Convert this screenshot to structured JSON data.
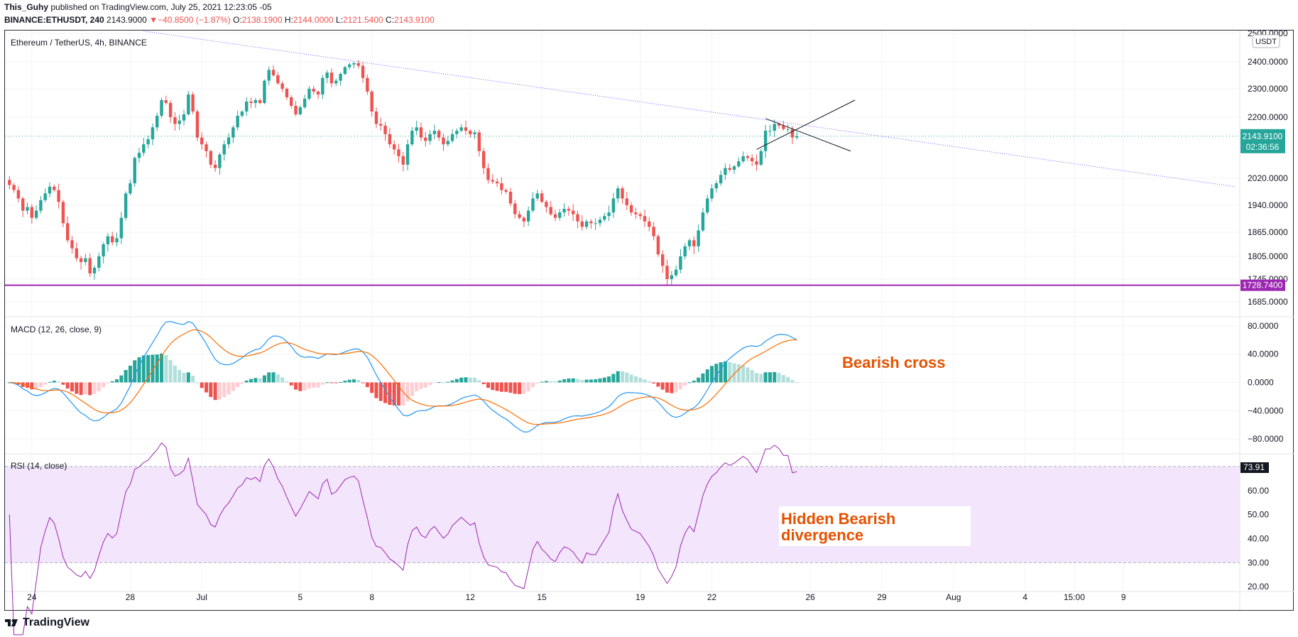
{
  "header": {
    "author": "This_Guhy",
    "published": "published on TradingView.com, July 25, 2021 12:23:05 -05",
    "symbol": "BINANCE:ETHUSDT, 240",
    "last": "2143.9000",
    "change": "−40.8500 (−1.87%)",
    "open_label": "O:",
    "open": "2138.1900",
    "high_label": "H:",
    "high": "2144.0000",
    "low_label": "L:",
    "low": "2121.5400",
    "close_label": "C:",
    "close": "2143.9100"
  },
  "colors": {
    "up": "#26a69a",
    "down": "#ef5350",
    "hist_up_light": "#b2dfdb",
    "hist_down_light": "#ffcdd2",
    "macd": "#2196f3",
    "signal": "#ff6d00",
    "rsi": "#9c27b0",
    "support": "#9c27b0",
    "annotation": "#e65100"
  },
  "footer": {
    "brand": "TradingView"
  },
  "chart_data": [
    {
      "type": "candlestick",
      "title": "Ethereum / TetherUS, 4h, BINANCE",
      "currency": "USDT",
      "y_ticks": [
        2500,
        2400,
        2300,
        2200,
        2020,
        1940,
        1865,
        1805,
        1745,
        1685
      ],
      "y_tick_labels": [
        "2500.0000",
        "2400.0000",
        "2300.0000",
        "2200.0000",
        "2020.0000",
        "1940.0000",
        "1865.0000",
        "1805.0000",
        "1745.0000",
        "1685.0000"
      ],
      "x_tick_labels": [
        "24",
        "28",
        "Jul",
        "5",
        "8",
        "12",
        "15",
        "19",
        "22",
        "26",
        "29",
        "Aug",
        "4",
        "15:00",
        "9"
      ],
      "x_tick_bars": [
        5,
        27,
        43,
        65,
        81,
        103,
        119,
        141,
        157,
        179,
        195,
        211,
        227,
        238,
        249
      ],
      "close_series": [
        2000,
        1985,
        1960,
        1925,
        1935,
        1905,
        1925,
        1955,
        1975,
        1995,
        1985,
        1950,
        1890,
        1845,
        1825,
        1800,
        1790,
        1800,
        1760,
        1775,
        1805,
        1835,
        1855,
        1840,
        1850,
        1905,
        1975,
        2005,
        2080,
        2095,
        2120,
        2135,
        2170,
        2205,
        2260,
        2250,
        2200,
        2180,
        2190,
        2210,
        2280,
        2220,
        2140,
        2120,
        2100,
        2060,
        2050,
        2090,
        2120,
        2140,
        2170,
        2205,
        2220,
        2255,
        2250,
        2260,
        2250,
        2330,
        2370,
        2350,
        2320,
        2300,
        2270,
        2240,
        2210,
        2235,
        2265,
        2300,
        2290,
        2280,
        2340,
        2360,
        2320,
        2330,
        2355,
        2380,
        2390,
        2395,
        2385,
        2340,
        2290,
        2220,
        2180,
        2175,
        2150,
        2120,
        2105,
        2085,
        2060,
        2120,
        2160,
        2170,
        2140,
        2130,
        2150,
        2160,
        2140,
        2120,
        2130,
        2150,
        2160,
        2170,
        2160,
        2150,
        2155,
        2100,
        2050,
        2015,
        2010,
        2005,
        1985,
        1980,
        1945,
        1915,
        1905,
        1895,
        1925,
        1960,
        1975,
        1950,
        1935,
        1915,
        1905,
        1920,
        1930,
        1925,
        1915,
        1895,
        1880,
        1895,
        1890,
        1890,
        1900,
        1910,
        1920,
        1960,
        1990,
        1960,
        1940,
        1920,
        1915,
        1910,
        1895,
        1880,
        1855,
        1810,
        1780,
        1745,
        1755,
        1770,
        1805,
        1830,
        1845,
        1830,
        1870,
        1920,
        1960,
        1990,
        2005,
        2030,
        2050,
        2045,
        2055,
        2070,
        2085,
        2080,
        2070,
        2060,
        2100,
        2160,
        2160,
        2180,
        2175,
        2165,
        2165,
        2140,
        2143.91
      ],
      "xlim_bars": [
        -1,
        275
      ],
      "ylim": [
        1650,
        2510
      ],
      "last_price_label": "2143.9100",
      "countdown": "02:36:56",
      "support_level": 1728.74,
      "support_label": "1728.7400",
      "trendline": [
        {
          "bar": 30,
          "price": 2508
        },
        {
          "bar": 274,
          "price": 1995
        }
      ],
      "wedge_lines": [
        [
          {
            "bar": 169,
            "price": 2196
          },
          {
            "bar": 188,
            "price": 2100
          }
        ],
        [
          {
            "bar": 167,
            "price": 2105
          },
          {
            "bar": 189,
            "price": 2260
          }
        ]
      ]
    },
    {
      "type": "line",
      "title": "MACD (12, 26, close, 9)",
      "series_colors": [
        "#2196f3",
        "#ff6d00"
      ],
      "y_ticks": [
        80,
        40,
        0,
        -40,
        -80
      ],
      "y_tick_labels": [
        "80.0000",
        "40.0000",
        "0.0000",
        "−40.0000",
        "−80.0000"
      ],
      "ylim": [
        -100,
        92
      ],
      "annotation": "Bearish cross"
    },
    {
      "type": "line",
      "title": "RSI (14, close)",
      "last_value_label": "73.91",
      "y_ticks": [
        70,
        60,
        50,
        40,
        30,
        20
      ],
      "y_tick_labels": [
        "70.00",
        "60.00",
        "50.00",
        "40.00",
        "30.00",
        "20.00"
      ],
      "band": [
        30,
        70
      ],
      "ylim": [
        18,
        75
      ],
      "annotation_line1": "Hidden Bearish",
      "annotation_line2": "divergence"
    }
  ]
}
